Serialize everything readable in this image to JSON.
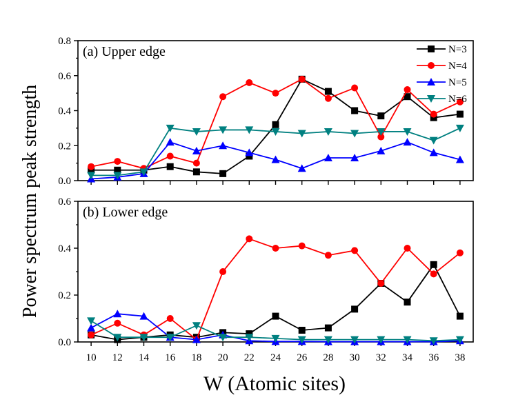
{
  "figure": {
    "ylabel": "Power spectrum peak strength",
    "xlabel": "W (Atomic sites)"
  },
  "legend": {
    "items": [
      {
        "label": "N=3",
        "color": "#000000",
        "marker": "square"
      },
      {
        "label": "N=4",
        "color": "#ff0000",
        "marker": "circle"
      },
      {
        "label": "N=5",
        "color": "#0000ff",
        "marker": "triangle-up"
      },
      {
        "label": "N=6",
        "color": "#008080",
        "marker": "triangle-down"
      }
    ]
  },
  "chart_data": [
    {
      "type": "line",
      "title": "(a) Upper edge",
      "xlabel": "W (Atomic sites)",
      "ylabel": "Power spectrum peak strength",
      "x": [
        10,
        12,
        14,
        16,
        18,
        20,
        22,
        24,
        26,
        28,
        30,
        32,
        34,
        36,
        38
      ],
      "xlim": [
        9,
        39
      ],
      "ylim": [
        0,
        0.8
      ],
      "yticks": [
        0.0,
        0.2,
        0.4,
        0.6,
        0.8
      ],
      "ytick_labels": [
        "0.0",
        "0.2",
        "0.4",
        "0.6",
        "0.8"
      ],
      "legend_position": "top-right",
      "series": [
        {
          "name": "N=3",
          "color": "#000000",
          "marker": "square",
          "values": [
            0.06,
            0.06,
            0.06,
            0.08,
            0.05,
            0.04,
            0.14,
            0.32,
            0.58,
            0.51,
            0.4,
            0.37,
            0.48,
            0.36,
            0.38
          ]
        },
        {
          "name": "N=4",
          "color": "#ff0000",
          "marker": "circle",
          "values": [
            0.08,
            0.11,
            0.07,
            0.14,
            0.1,
            0.48,
            0.56,
            0.5,
            0.58,
            0.47,
            0.53,
            0.25,
            0.52,
            0.38,
            0.45
          ]
        },
        {
          "name": "N=5",
          "color": "#0000ff",
          "marker": "triangle-up",
          "values": [
            0.01,
            0.02,
            0.04,
            0.22,
            0.17,
            0.2,
            0.16,
            0.12,
            0.07,
            0.13,
            0.13,
            0.17,
            0.22,
            0.16,
            0.12
          ]
        },
        {
          "name": "N=6",
          "color": "#008080",
          "marker": "triangle-down",
          "values": [
            0.03,
            0.03,
            0.05,
            0.3,
            0.28,
            0.29,
            0.29,
            0.28,
            0.27,
            0.28,
            0.27,
            0.28,
            0.28,
            0.23,
            0.3
          ]
        }
      ]
    },
    {
      "type": "line",
      "title": "(b) Lower edge",
      "xlabel": "W (Atomic sites)",
      "ylabel": "Power spectrum peak strength",
      "x": [
        10,
        12,
        14,
        16,
        18,
        20,
        22,
        24,
        26,
        28,
        30,
        32,
        34,
        36,
        38
      ],
      "xlim": [
        9,
        39
      ],
      "ylim": [
        0,
        0.6
      ],
      "yticks": [
        0.0,
        0.2,
        0.4,
        0.6
      ],
      "ytick_labels": [
        "0.0",
        "0.2",
        "0.4",
        "0.6"
      ],
      "xticks": [
        10,
        12,
        14,
        16,
        18,
        20,
        22,
        24,
        26,
        28,
        30,
        32,
        34,
        36,
        38
      ],
      "xtick_labels": [
        "10",
        "12",
        "14",
        "16",
        "18",
        "20",
        "22",
        "24",
        "26",
        "28",
        "30",
        "32",
        "34",
        "36",
        "38"
      ],
      "series": [
        {
          "name": "N=3",
          "color": "#000000",
          "marker": "square",
          "values": [
            0.03,
            0.01,
            0.02,
            0.03,
            0.02,
            0.04,
            0.035,
            0.11,
            0.05,
            0.06,
            0.14,
            0.25,
            0.17,
            0.33,
            0.11
          ]
        },
        {
          "name": "N=4",
          "color": "#ff0000",
          "marker": "circle",
          "values": [
            0.03,
            0.08,
            0.03,
            0.1,
            0.01,
            0.3,
            0.44,
            0.4,
            0.41,
            0.37,
            0.39,
            0.25,
            0.4,
            0.29,
            0.38
          ]
        },
        {
          "name": "N=5",
          "color": "#0000ff",
          "marker": "triangle-up",
          "values": [
            0.06,
            0.12,
            0.11,
            0.02,
            0.01,
            0.03,
            0.005,
            0.002,
            0.002,
            0.001,
            0.001,
            0.001,
            0.001,
            0.001,
            0.005
          ]
        },
        {
          "name": "N=6",
          "color": "#008080",
          "marker": "triangle-down",
          "values": [
            0.09,
            0.02,
            0.02,
            0.02,
            0.07,
            0.02,
            0.02,
            0.015,
            0.01,
            0.01,
            0.01,
            0.01,
            0.01,
            0.005,
            0.01
          ]
        }
      ]
    }
  ]
}
